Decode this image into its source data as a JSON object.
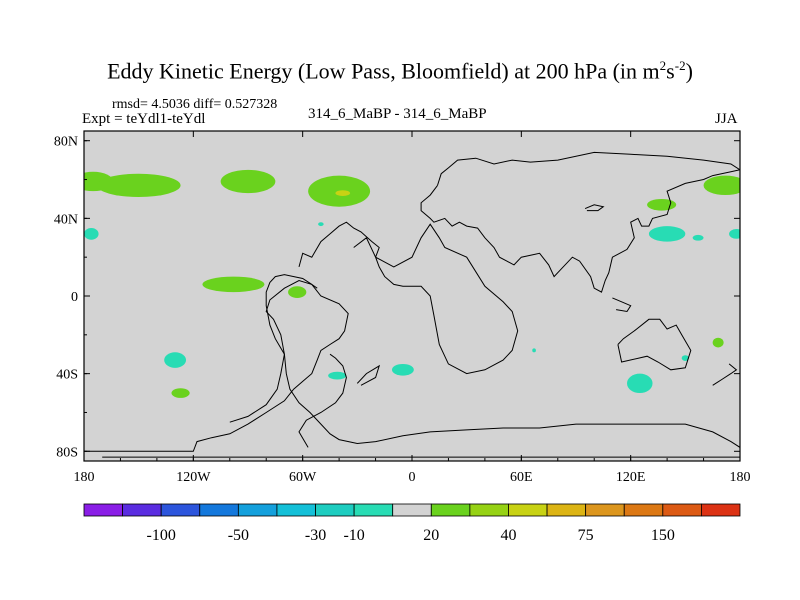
{
  "chart_data": {
    "type": "heatmap",
    "title_main": "Eddy Kinetic Energy (Low Pass, Bloomfield) at 200 hPa (in m",
    "title_sup1": "2",
    "title_mid": "s",
    "title_sup2": "-2",
    "title_end": ")",
    "stats": "rmsd= 4.5036 diff= 0.527328",
    "expt": "Expt = teYdl1-teYdl",
    "center_label": "314_6_MaBP - 314_6_MaBP",
    "season": "JJA",
    "xlim": [
      -180,
      180
    ],
    "ylim": [
      -85,
      85
    ],
    "x_ticks": [
      {
        "value": -180,
        "label": "180"
      },
      {
        "value": -120,
        "label": "120W"
      },
      {
        "value": -60,
        "label": "60W"
      },
      {
        "value": 0,
        "label": "0"
      },
      {
        "value": 60,
        "label": "60E"
      },
      {
        "value": 120,
        "label": "120E"
      },
      {
        "value": 180,
        "label": "180"
      }
    ],
    "y_ticks": [
      {
        "value": 80,
        "label": "80N"
      },
      {
        "value": 40,
        "label": "40N"
      },
      {
        "value": 0,
        "label": "0"
      },
      {
        "value": -40,
        "label": "40S"
      },
      {
        "value": -80,
        "label": "80S"
      }
    ],
    "background_color": "#d3d3d3",
    "colorbar": {
      "colors": [
        "#8a1ee6",
        "#5a2ce0",
        "#2c55dc",
        "#1478dc",
        "#14a0dc",
        "#14c0d8",
        "#1ecdc0",
        "#28dcb4",
        "#d3d3d3",
        "#6ad21e",
        "#96d214",
        "#c8d214",
        "#dcb414",
        "#dc961e",
        "#dc7814",
        "#dc5a14",
        "#dc3214"
      ],
      "labels": [
        "-100",
        "-50",
        "-30",
        "-10",
        "20",
        "40",
        "75",
        "150"
      ]
    },
    "anomaly_regions": [
      {
        "lon": -175,
        "lat": 59,
        "rlon": 11,
        "rlat": 5,
        "color": "#6ad21e"
      },
      {
        "lon": -150,
        "lat": 57,
        "rlon": 23,
        "rlat": 6,
        "color": "#6ad21e"
      },
      {
        "lon": -90,
        "lat": 59,
        "rlon": 15,
        "rlat": 6,
        "color": "#6ad21e"
      },
      {
        "lon": -40,
        "lat": 54,
        "rlon": 17,
        "rlat": 8,
        "color": "#6ad21e"
      },
      {
        "lon": -38,
        "lat": 53,
        "rlon": 4,
        "rlat": 1.5,
        "color": "#c8d214"
      },
      {
        "lon": -98,
        "lat": 6,
        "rlon": 17,
        "rlat": 4,
        "color": "#6ad21e"
      },
      {
        "lon": -63,
        "lat": 2,
        "rlon": 5,
        "rlat": 3,
        "color": "#6ad21e"
      },
      {
        "lon": -176,
        "lat": 32,
        "rlon": 4,
        "rlat": 3,
        "color": "#28dcb4"
      },
      {
        "lon": -130,
        "lat": -33,
        "rlon": 6,
        "rlat": 4,
        "color": "#28dcb4"
      },
      {
        "lon": -127,
        "lat": -50,
        "rlon": 5,
        "rlat": 2.5,
        "color": "#6ad21e"
      },
      {
        "lon": -41,
        "lat": -41,
        "rlon": 5,
        "rlat": 2,
        "color": "#28dcb4"
      },
      {
        "lon": -5,
        "lat": -38,
        "rlon": 6,
        "rlat": 3,
        "color": "#28dcb4"
      },
      {
        "lon": 125,
        "lat": -45,
        "rlon": 7,
        "rlat": 5,
        "color": "#28dcb4"
      },
      {
        "lon": 140,
        "lat": 32,
        "rlon": 10,
        "rlat": 4,
        "color": "#28dcb4"
      },
      {
        "lon": 157,
        "lat": 30,
        "rlon": 3,
        "rlat": 1.5,
        "color": "#28dcb4"
      },
      {
        "lon": 178,
        "lat": 32,
        "rlon": 4,
        "rlat": 2.5,
        "color": "#28dcb4"
      },
      {
        "lon": 172,
        "lat": 57,
        "rlon": 12,
        "rlat": 5,
        "color": "#6ad21e"
      },
      {
        "lon": 137,
        "lat": 47,
        "rlon": 8,
        "rlat": 3,
        "color": "#6ad21e"
      },
      {
        "lon": 168,
        "lat": -24,
        "rlon": 3,
        "rlat": 2.5,
        "color": "#6ad21e"
      },
      {
        "lon": 150,
        "lat": -32,
        "rlon": 2,
        "rlat": 1.5,
        "color": "#28dcb4"
      },
      {
        "lon": 67,
        "lat": -28,
        "rlon": 1,
        "rlat": 1,
        "color": "#28dcb4"
      },
      {
        "lon": -50,
        "lat": 37,
        "rlon": 1.5,
        "rlat": 1,
        "color": "#28dcb4"
      }
    ],
    "coastlines": [
      [
        [
          -180,
          -80
        ],
        [
          -120,
          -80
        ],
        [
          -118,
          -75
        ],
        [
          -110,
          -73
        ],
        [
          -100,
          -71
        ],
        [
          -90,
          -66
        ],
        [
          -80,
          -60
        ],
        [
          -70,
          -54
        ],
        [
          -65,
          -48
        ],
        [
          -60,
          -44
        ],
        [
          -55,
          -40
        ],
        [
          -52,
          -33
        ],
        [
          -50,
          -28
        ],
        [
          -45,
          -25
        ],
        [
          -40,
          -22
        ],
        [
          -37,
          -18
        ],
        [
          -35,
          -9
        ],
        [
          -40,
          -4
        ],
        [
          -50,
          0
        ],
        [
          -55,
          6
        ],
        [
          -60,
          9
        ],
        [
          -70,
          11
        ],
        [
          -75,
          10
        ],
        [
          -78,
          7
        ],
        [
          -80,
          2
        ],
        [
          -80,
          -5
        ],
        [
          -78,
          -15
        ],
        [
          -75,
          -22
        ],
        [
          -70,
          -30
        ],
        [
          -69,
          -40
        ],
        [
          -67,
          -48
        ],
        [
          -62,
          -55
        ],
        [
          -56,
          -60
        ],
        [
          -50,
          -66
        ],
        [
          -45,
          -71
        ],
        [
          -40,
          -74
        ],
        [
          -30,
          -76
        ],
        [
          -20,
          -75
        ],
        [
          -5,
          -72
        ],
        [
          10,
          -70
        ],
        [
          30,
          -69
        ],
        [
          50,
          -68
        ],
        [
          70,
          -68
        ],
        [
          90,
          -66
        ],
        [
          110,
          -66
        ],
        [
          130,
          -66
        ],
        [
          150,
          -66
        ],
        [
          165,
          -70
        ],
        [
          175,
          -75
        ],
        [
          180,
          -78
        ]
      ],
      [
        [
          -100,
          -65
        ],
        [
          -90,
          -62
        ],
        [
          -80,
          -56
        ],
        [
          -74,
          -48
        ],
        [
          -72,
          -40
        ],
        [
          -70,
          -30
        ],
        [
          -72,
          -20
        ],
        [
          -76,
          -12
        ],
        [
          -80,
          -8
        ],
        [
          -78,
          -2
        ],
        [
          -70,
          4
        ],
        [
          -62,
          8
        ],
        [
          -55,
          6
        ],
        [
          -52,
          4
        ]
      ],
      [
        [
          -170,
          -83
        ],
        [
          180,
          -83
        ]
      ],
      [
        [
          -57,
          -78
        ],
        [
          -62,
          -70
        ],
        [
          -58,
          -64
        ],
        [
          -50,
          -60
        ],
        [
          -42,
          -55
        ],
        [
          -38,
          -50
        ],
        [
          -36,
          -42
        ],
        [
          -38,
          -36
        ],
        [
          -42,
          -32
        ],
        [
          -45,
          -30
        ]
      ],
      [
        [
          -30,
          -45
        ],
        [
          -25,
          -40
        ],
        [
          -18,
          -36
        ],
        [
          -20,
          -42
        ],
        [
          -28,
          -46
        ]
      ],
      [
        [
          -32,
          25
        ],
        [
          -25,
          30
        ],
        [
          -20,
          20
        ],
        [
          -10,
          15
        ],
        [
          0,
          20
        ],
        [
          5,
          30
        ],
        [
          10,
          37
        ],
        [
          15,
          30
        ],
        [
          18,
          25
        ],
        [
          30,
          20
        ],
        [
          40,
          5
        ],
        [
          50,
          -3
        ],
        [
          55,
          -8
        ],
        [
          58,
          -18
        ],
        [
          55,
          -28
        ],
        [
          50,
          -33
        ],
        [
          40,
          -38
        ],
        [
          30,
          -40
        ],
        [
          20,
          -35
        ],
        [
          15,
          -25
        ],
        [
          12,
          -10
        ],
        [
          10,
          0
        ],
        [
          5,
          5
        ],
        [
          -5,
          5
        ],
        [
          -10,
          6
        ],
        [
          -15,
          10
        ],
        [
          -18,
          15
        ],
        [
          -20,
          20
        ],
        [
          -18,
          25
        ],
        [
          -22,
          28
        ],
        [
          -28,
          33
        ],
        [
          -32,
          35
        ],
        [
          -36,
          38
        ],
        [
          -40,
          36
        ],
        [
          -45,
          32
        ],
        [
          -50,
          28
        ],
        [
          -55,
          20
        ],
        [
          -60,
          22
        ],
        [
          -62,
          15
        ]
      ],
      [
        [
          14,
          57
        ],
        [
          16,
          63
        ],
        [
          20,
          66
        ],
        [
          25,
          70
        ],
        [
          35,
          71
        ],
        [
          45,
          68
        ],
        [
          55,
          70
        ],
        [
          65,
          69
        ],
        [
          80,
          70
        ],
        [
          100,
          74
        ],
        [
          120,
          73
        ],
        [
          140,
          72
        ],
        [
          160,
          70
        ],
        [
          175,
          68
        ],
        [
          180,
          65
        ]
      ],
      [
        [
          14,
          57
        ],
        [
          10,
          52
        ],
        [
          5,
          48
        ],
        [
          5,
          44
        ],
        [
          10,
          40
        ],
        [
          12,
          38
        ],
        [
          18,
          40
        ],
        [
          22,
          36
        ],
        [
          26,
          38
        ],
        [
          30,
          36
        ],
        [
          36,
          35
        ],
        [
          40,
          30
        ],
        [
          45,
          25
        ],
        [
          48,
          20
        ],
        [
          52,
          18
        ],
        [
          56,
          16
        ],
        [
          60,
          20
        ],
        [
          70,
          22
        ],
        [
          75,
          16
        ],
        [
          78,
          10
        ],
        [
          82,
          14
        ],
        [
          88,
          20
        ],
        [
          92,
          18
        ],
        [
          98,
          10
        ],
        [
          100,
          4
        ],
        [
          104,
          2
        ],
        [
          106,
          8
        ],
        [
          108,
          12
        ],
        [
          110,
          20
        ],
        [
          118,
          24
        ],
        [
          122,
          30
        ],
        [
          120,
          38
        ],
        [
          124,
          40
        ],
        [
          126,
          36
        ],
        [
          130,
          36
        ],
        [
          132,
          40
        ],
        [
          140,
          42
        ],
        [
          142,
          48
        ],
        [
          140,
          54
        ],
        [
          150,
          58
        ],
        [
          160,
          60
        ],
        [
          165,
          62
        ],
        [
          175,
          64
        ],
        [
          180,
          65
        ]
      ],
      [
        [
          95,
          45
        ],
        [
          100,
          47
        ],
        [
          105,
          46
        ],
        [
          102,
          44
        ],
        [
          96,
          44
        ]
      ],
      [
        [
          110,
          -1
        ],
        [
          115,
          -3
        ],
        [
          120,
          -5
        ],
        [
          118,
          -8
        ],
        [
          112,
          -7
        ]
      ],
      [
        [
          113,
          -25
        ],
        [
          116,
          -22
        ],
        [
          122,
          -18
        ],
        [
          130,
          -12
        ],
        [
          136,
          -12
        ],
        [
          140,
          -17
        ],
        [
          145,
          -15
        ],
        [
          148,
          -20
        ],
        [
          153,
          -28
        ],
        [
          150,
          -37
        ],
        [
          142,
          -38
        ],
        [
          135,
          -34
        ],
        [
          129,
          -31
        ],
        [
          115,
          -34
        ],
        [
          113,
          -25
        ]
      ],
      [
        [
          165,
          -46
        ],
        [
          170,
          -43
        ],
        [
          175,
          -40
        ],
        [
          178,
          -38
        ],
        [
          174,
          -35
        ]
      ]
    ]
  }
}
